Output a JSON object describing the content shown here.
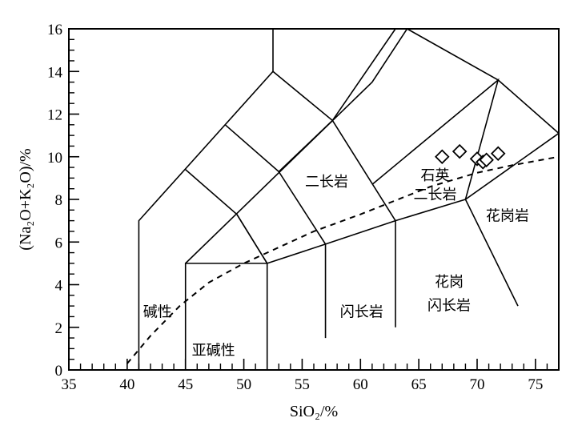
{
  "chart_data": {
    "type": "scatter",
    "xlabel": "SiO₂/%",
    "ylabel": "(Na₂O+K₂O)/%",
    "xlim": [
      35,
      77
    ],
    "ylim": [
      0,
      16
    ],
    "x_ticks": [
      "35",
      "40",
      "45",
      "50",
      "55",
      "60",
      "65",
      "70",
      "75"
    ],
    "y_ticks": [
      "0",
      "2",
      "4",
      "6",
      "8",
      "10",
      "12",
      "14",
      "16"
    ],
    "grid": false,
    "series": [
      {
        "marker": "diamond",
        "points": [
          {
            "x": 67.0,
            "y": 10.0
          },
          {
            "x": 68.5,
            "y": 10.25
          },
          {
            "x": 70.0,
            "y": 9.9
          },
          {
            "x": 70.5,
            "y": 9.75
          },
          {
            "x": 70.8,
            "y": 9.85
          },
          {
            "x": 71.8,
            "y": 10.15
          }
        ]
      }
    ],
    "field_boundaries": [
      [
        [
          41,
          0
        ],
        [
          41,
          7
        ],
        [
          52.5,
          14
        ],
        [
          57.6,
          11.7
        ],
        [
          63,
          16
        ]
      ],
      [
        [
          52.5,
          14
        ],
        [
          52.5,
          16
        ]
      ],
      [
        [
          45,
          0
        ],
        [
          45,
          5
        ],
        [
          52,
          5
        ],
        [
          52,
          0
        ]
      ],
      [
        [
          45,
          5
        ],
        [
          61,
          13.5
        ],
        [
          64,
          16
        ]
      ],
      [
        [
          45,
          9.4
        ],
        [
          49.4,
          7.3
        ],
        [
          52,
          5
        ]
      ],
      [
        [
          48.4,
          11.5
        ],
        [
          53,
          9.3
        ]
      ],
      [
        [
          52,
          5
        ],
        [
          57,
          5.9
        ],
        [
          63,
          7
        ],
        [
          69,
          8
        ],
        [
          77,
          11.1
        ]
      ],
      [
        [
          57.6,
          11.7
        ],
        [
          53,
          9.3
        ],
        [
          57,
          5.9
        ],
        [
          57,
          1.5
        ]
      ],
      [
        [
          57.6,
          11.7
        ],
        [
          63,
          7
        ],
        [
          63,
          2
        ]
      ],
      [
        [
          61,
          8.7
        ],
        [
          71.8,
          13.6
        ],
        [
          69,
          8
        ],
        [
          73.5,
          3
        ]
      ],
      [
        [
          64,
          16
        ],
        [
          71.8,
          13.6
        ],
        [
          77,
          11.1
        ]
      ],
      [
        [
          49.4,
          7.3
        ],
        [
          52,
          5
        ]
      ]
    ],
    "alkaline_line": [
      [
        40,
        0.3
      ],
      [
        42,
        1.6
      ],
      [
        44.5,
        3
      ],
      [
        47,
        4.1
      ],
      [
        50,
        5
      ],
      [
        53,
        5.75
      ],
      [
        56,
        6.5
      ],
      [
        60,
        7.3
      ],
      [
        63,
        7.95
      ],
      [
        66,
        8.6
      ],
      [
        70,
        9.25
      ],
      [
        73,
        9.6
      ],
      [
        77,
        10
      ]
    ],
    "field_labels": [
      {
        "text": "碱性",
        "x": 42.6,
        "y": 2.5
      },
      {
        "text": "亚碱性",
        "x": 47.4,
        "y": 0.7
      },
      {
        "text": "闪长岩",
        "x": 60.1,
        "y": 2.5
      },
      {
        "text": "二长岩",
        "x": 57.1,
        "y": 8.6
      },
      {
        "text": "石英",
        "x": 66.4,
        "y": 8.9
      },
      {
        "text": "二长岩",
        "x": 66.4,
        "y": 8.0
      },
      {
        "text": "花岗岩",
        "x": 72.6,
        "y": 7.0
      },
      {
        "text": "花岗",
        "x": 67.6,
        "y": 3.9
      },
      {
        "text": "闪长岩",
        "x": 67.6,
        "y": 2.8
      }
    ]
  }
}
